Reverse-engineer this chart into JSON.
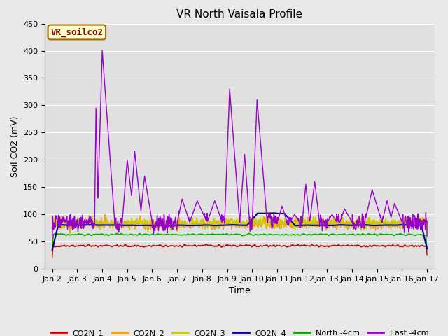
{
  "title": "VR North Vaisala Profile",
  "xlabel": "Time",
  "ylabel": "Soil CO2 (mV)",
  "ylim": [
    0,
    450
  ],
  "yticks": [
    0,
    50,
    100,
    150,
    200,
    250,
    300,
    350,
    400,
    450
  ],
  "background_color": "#e8e8e8",
  "plot_bg_color": "#e0e0e0",
  "grid_color": "#ffffff",
  "annotation_text": "VR_soilco2",
  "annotation_bg": "#ffffcc",
  "annotation_border": "#aa6600",
  "annotation_text_color": "#880000",
  "series_colors": {
    "CO2N_1": "#cc0000",
    "CO2N_2": "#ff9900",
    "CO2N_3": "#cccc00",
    "CO2N_4": "#000099",
    "North -4cm": "#00aa00",
    "East -4cm": "#9900cc"
  },
  "series_lw": {
    "CO2N_1": 1.0,
    "CO2N_2": 1.0,
    "CO2N_3": 1.0,
    "CO2N_4": 1.5,
    "North -4cm": 1.0,
    "East -4cm": 1.0
  },
  "x_tick_labels": [
    "Jan 2",
    "Jan 3",
    "Jan 4",
    "Jan 5",
    "Jan 6",
    "Jan 7",
    "Jan 8",
    "Jan 9",
    "Jan 10",
    "Jan 11",
    "Jan 12",
    "Jan 13",
    "Jan 14",
    "Jan 15",
    "Jan 16",
    "Jan 17"
  ],
  "title_fontsize": 11,
  "axis_label_fontsize": 9,
  "tick_fontsize": 8,
  "legend_fontsize": 8
}
